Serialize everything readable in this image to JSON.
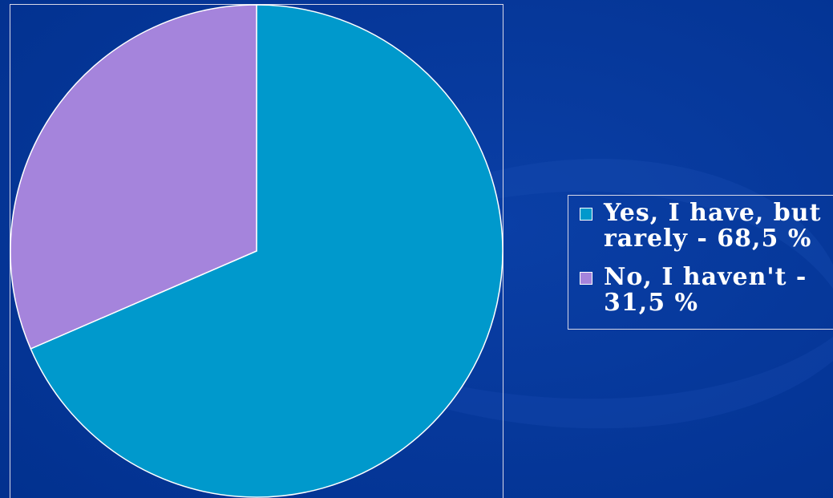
{
  "chart_data": {
    "type": "pie",
    "title": "",
    "legend_position": "right",
    "slices": [
      {
        "label": "Yes, I have, but rarely - 68,5 %",
        "value": 68.5,
        "color": "#0099cc"
      },
      {
        "label": "No, I haven't - 31,5 %",
        "value": 31.5,
        "color": "#a584dc"
      }
    ]
  },
  "colors": {
    "background": "#003399",
    "slice_stroke": "#ffffff",
    "frame_border": "#d8d8e8"
  }
}
